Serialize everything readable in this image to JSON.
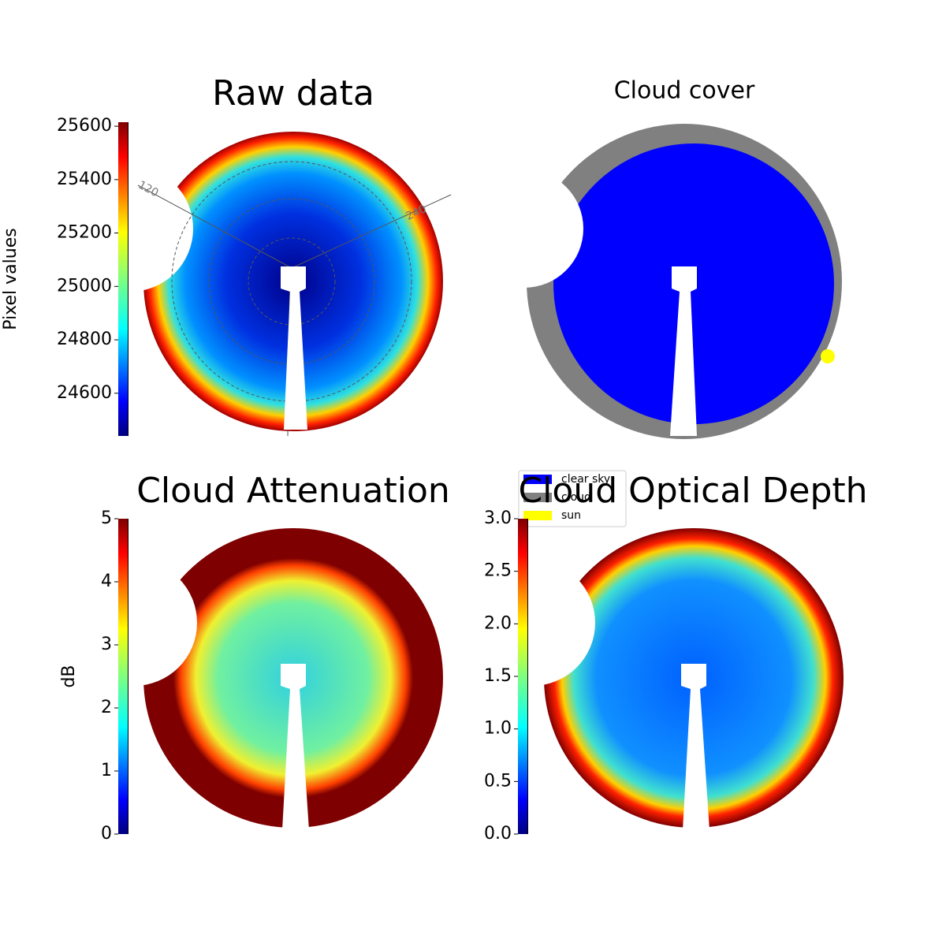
{
  "chart_data": [
    {
      "type": "image",
      "title": "Raw data",
      "colorbar_label": "Pixel values",
      "colormap": "jet",
      "clim": [
        24440,
        25615
      ],
      "cticks": [
        24600,
        24800,
        25000,
        25200,
        25400,
        25600
      ],
      "polar_labels": [
        "120",
        "240"
      ]
    },
    {
      "type": "categorical-image",
      "title": "Cloud cover",
      "legend": [
        {
          "name": "clear sky",
          "color": "#0000ff"
        },
        {
          "name": "cloud",
          "color": "#808080"
        },
        {
          "name": "sun",
          "color": "#ffff00"
        }
      ]
    },
    {
      "type": "image",
      "title": "Cloud Attenuation",
      "colorbar_label": "dB",
      "colormap": "jet",
      "clim": [
        0,
        5
      ],
      "cticks": [
        0,
        1,
        2,
        3,
        4,
        5
      ]
    },
    {
      "type": "image",
      "title": "Cloud Optical Depth",
      "colormap": "jet",
      "clim": [
        0,
        3
      ],
      "cticks": [
        {
          "value": 0,
          "label": "0.0"
        },
        {
          "value": 0.5,
          "label": "0.5"
        },
        {
          "value": 1,
          "label": "1.0"
        },
        {
          "value": 1.5,
          "label": "1.5"
        },
        {
          "value": 2,
          "label": "2.0"
        },
        {
          "value": 2.5,
          "label": "2.5"
        },
        {
          "value": 3,
          "label": "3.0"
        }
      ]
    }
  ]
}
